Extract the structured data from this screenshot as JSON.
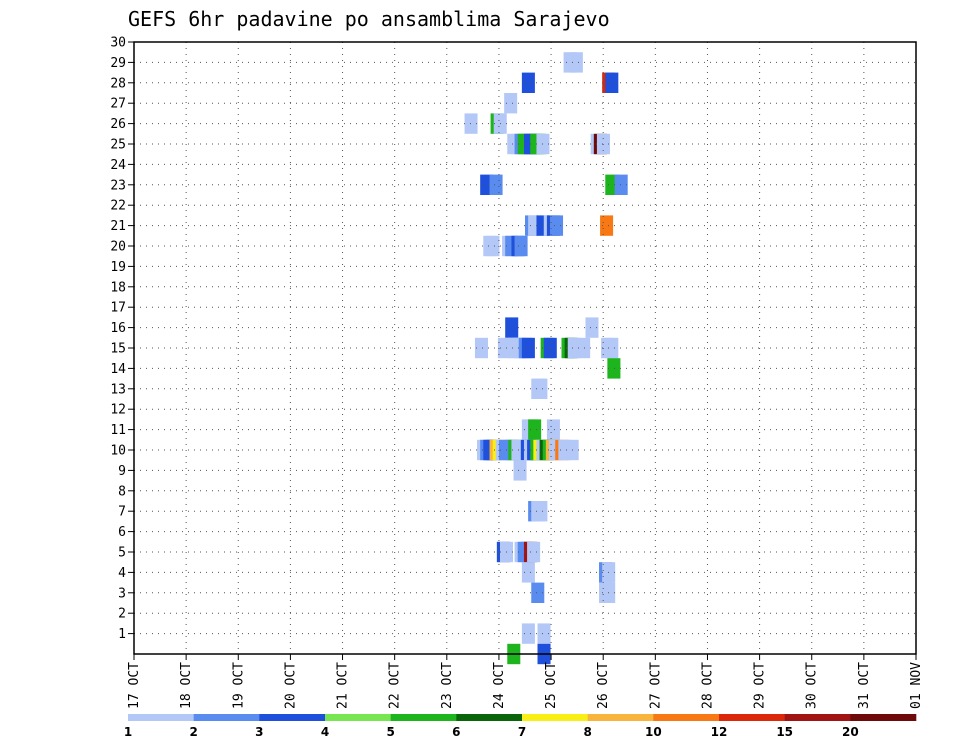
{
  "chart_data": {
    "type": "heatmap",
    "title": "GEFS 6hr padavine po ansamblima Sarajevo",
    "xlabel": "",
    "ylabel": "",
    "x_ticks": [
      "17 OCT",
      "18 OCT",
      "19 OCT",
      "20 OCT",
      "21 OCT",
      "22 OCT",
      "23 OCT",
      "24 OCT",
      "25 OCT",
      "26 OCT",
      "27 OCT",
      "28 OCT",
      "29 OCT",
      "30 OCT",
      "31 OCT",
      "01 NOV"
    ],
    "y_ticks": [
      1,
      2,
      3,
      4,
      5,
      6,
      7,
      8,
      9,
      10,
      11,
      12,
      13,
      14,
      15,
      16,
      17,
      18,
      19,
      20,
      21,
      22,
      23,
      24,
      25,
      26,
      27,
      28,
      29,
      30
    ],
    "ylim": [
      0,
      30
    ],
    "time_step_hours": 6,
    "grid": true,
    "colorbar": {
      "levels": [
        "1",
        "2",
        "3",
        "4",
        "5",
        "6",
        "7",
        "8",
        "10",
        "12",
        "15",
        "20"
      ],
      "colors": [
        "#b4c8f8",
        "#5a8cf0",
        "#1e50dc",
        "#78e650",
        "#1eb41e",
        "#0a640a",
        "#f8f014",
        "#f8b43c",
        "#f87814",
        "#dc280a",
        "#a01414",
        "#6e0a0a"
      ]
    },
    "cells": [
      [
        8.24,
        29,
        1
      ],
      [
        8.36,
        29,
        1
      ],
      [
        7.44,
        28,
        3
      ],
      [
        8.98,
        28,
        10
      ],
      [
        9.04,
        28,
        3
      ],
      [
        7.1,
        27,
        1
      ],
      [
        6.34,
        26,
        1
      ],
      [
        6.84,
        26,
        5
      ],
      [
        6.9,
        26,
        1
      ],
      [
        7.16,
        25,
        1
      ],
      [
        7.24,
        25,
        1
      ],
      [
        7.3,
        25,
        2
      ],
      [
        7.36,
        25,
        5
      ],
      [
        7.42,
        25,
        5
      ],
      [
        7.48,
        25,
        3
      ],
      [
        7.54,
        25,
        3
      ],
      [
        7.6,
        25,
        5
      ],
      [
        7.66,
        25,
        5
      ],
      [
        7.72,
        25,
        1
      ],
      [
        8.76,
        25,
        1
      ],
      [
        8.82,
        25,
        12
      ],
      [
        8.88,
        25,
        1
      ],
      [
        6.64,
        23,
        3
      ],
      [
        6.82,
        23,
        2
      ],
      [
        9.04,
        23,
        5
      ],
      [
        9.22,
        23,
        2
      ],
      [
        7.5,
        21,
        2
      ],
      [
        7.56,
        21,
        1
      ],
      [
        7.72,
        21,
        3
      ],
      [
        7.86,
        21,
        1
      ],
      [
        7.92,
        21,
        3
      ],
      [
        7.98,
        21,
        2
      ],
      [
        8.94,
        21,
        9
      ],
      [
        6.7,
        20,
        1
      ],
      [
        6.76,
        20,
        1
      ],
      [
        7.06,
        20,
        1
      ],
      [
        7.12,
        20,
        2
      ],
      [
        7.24,
        20,
        3
      ],
      [
        7.3,
        20,
        2
      ],
      [
        8.66,
        16,
        1
      ],
      [
        7.12,
        16,
        3
      ],
      [
        6.54,
        15,
        1
      ],
      [
        6.98,
        15,
        1
      ],
      [
        7.18,
        15,
        1
      ],
      [
        7.24,
        15,
        1
      ],
      [
        7.3,
        15,
        1
      ],
      [
        7.38,
        15,
        2
      ],
      [
        7.44,
        15,
        3
      ],
      [
        7.8,
        15,
        5
      ],
      [
        7.86,
        15,
        3
      ],
      [
        8.2,
        15,
        5
      ],
      [
        8.26,
        15,
        6
      ],
      [
        8.32,
        15,
        1
      ],
      [
        8.5,
        15,
        1
      ],
      [
        8.96,
        15,
        1
      ],
      [
        9.04,
        15,
        1
      ],
      [
        9.08,
        14,
        5
      ],
      [
        7.62,
        13,
        1
      ],
      [
        7.68,
        13,
        1
      ],
      [
        7.44,
        11,
        1
      ],
      [
        7.5,
        11,
        1
      ],
      [
        7.56,
        11,
        5
      ],
      [
        7.92,
        11,
        1
      ],
      [
        6.58,
        10,
        1
      ],
      [
        6.64,
        10,
        2
      ],
      [
        6.7,
        10,
        3
      ],
      [
        6.76,
        10,
        3
      ],
      [
        6.82,
        10,
        8
      ],
      [
        6.88,
        10,
        7
      ],
      [
        6.94,
        10,
        1
      ],
      [
        7.0,
        10,
        2
      ],
      [
        7.12,
        10,
        2
      ],
      [
        7.18,
        10,
        5
      ],
      [
        7.24,
        10,
        1
      ],
      [
        7.42,
        10,
        3
      ],
      [
        7.48,
        10,
        1
      ],
      [
        7.54,
        10,
        3
      ],
      [
        7.6,
        10,
        5
      ],
      [
        7.66,
        10,
        7
      ],
      [
        7.72,
        10,
        1
      ],
      [
        7.78,
        10,
        6
      ],
      [
        7.84,
        10,
        5
      ],
      [
        7.9,
        10,
        8
      ],
      [
        7.96,
        10,
        1
      ],
      [
        8.08,
        10,
        9
      ],
      [
        8.14,
        10,
        1
      ],
      [
        8.28,
        10,
        1
      ],
      [
        7.28,
        9,
        1
      ],
      [
        7.56,
        7,
        2
      ],
      [
        7.62,
        7,
        1
      ],
      [
        7.68,
        7,
        1
      ],
      [
        6.96,
        5,
        3
      ],
      [
        7.02,
        5,
        1
      ],
      [
        7.3,
        5,
        1
      ],
      [
        7.36,
        5,
        2
      ],
      [
        7.42,
        5,
        2
      ],
      [
        7.48,
        5,
        11
      ],
      [
        7.54,
        5,
        1
      ],
      [
        7.44,
        4,
        1
      ],
      [
        8.92,
        4,
        2
      ],
      [
        8.98,
        4,
        1
      ],
      [
        7.62,
        3,
        2
      ],
      [
        8.92,
        3,
        1
      ],
      [
        8.98,
        3,
        1
      ],
      [
        7.44,
        1,
        1
      ],
      [
        7.74,
        1,
        1
      ],
      [
        7.74,
        0,
        3
      ],
      [
        7.16,
        0,
        5
      ]
    ]
  }
}
